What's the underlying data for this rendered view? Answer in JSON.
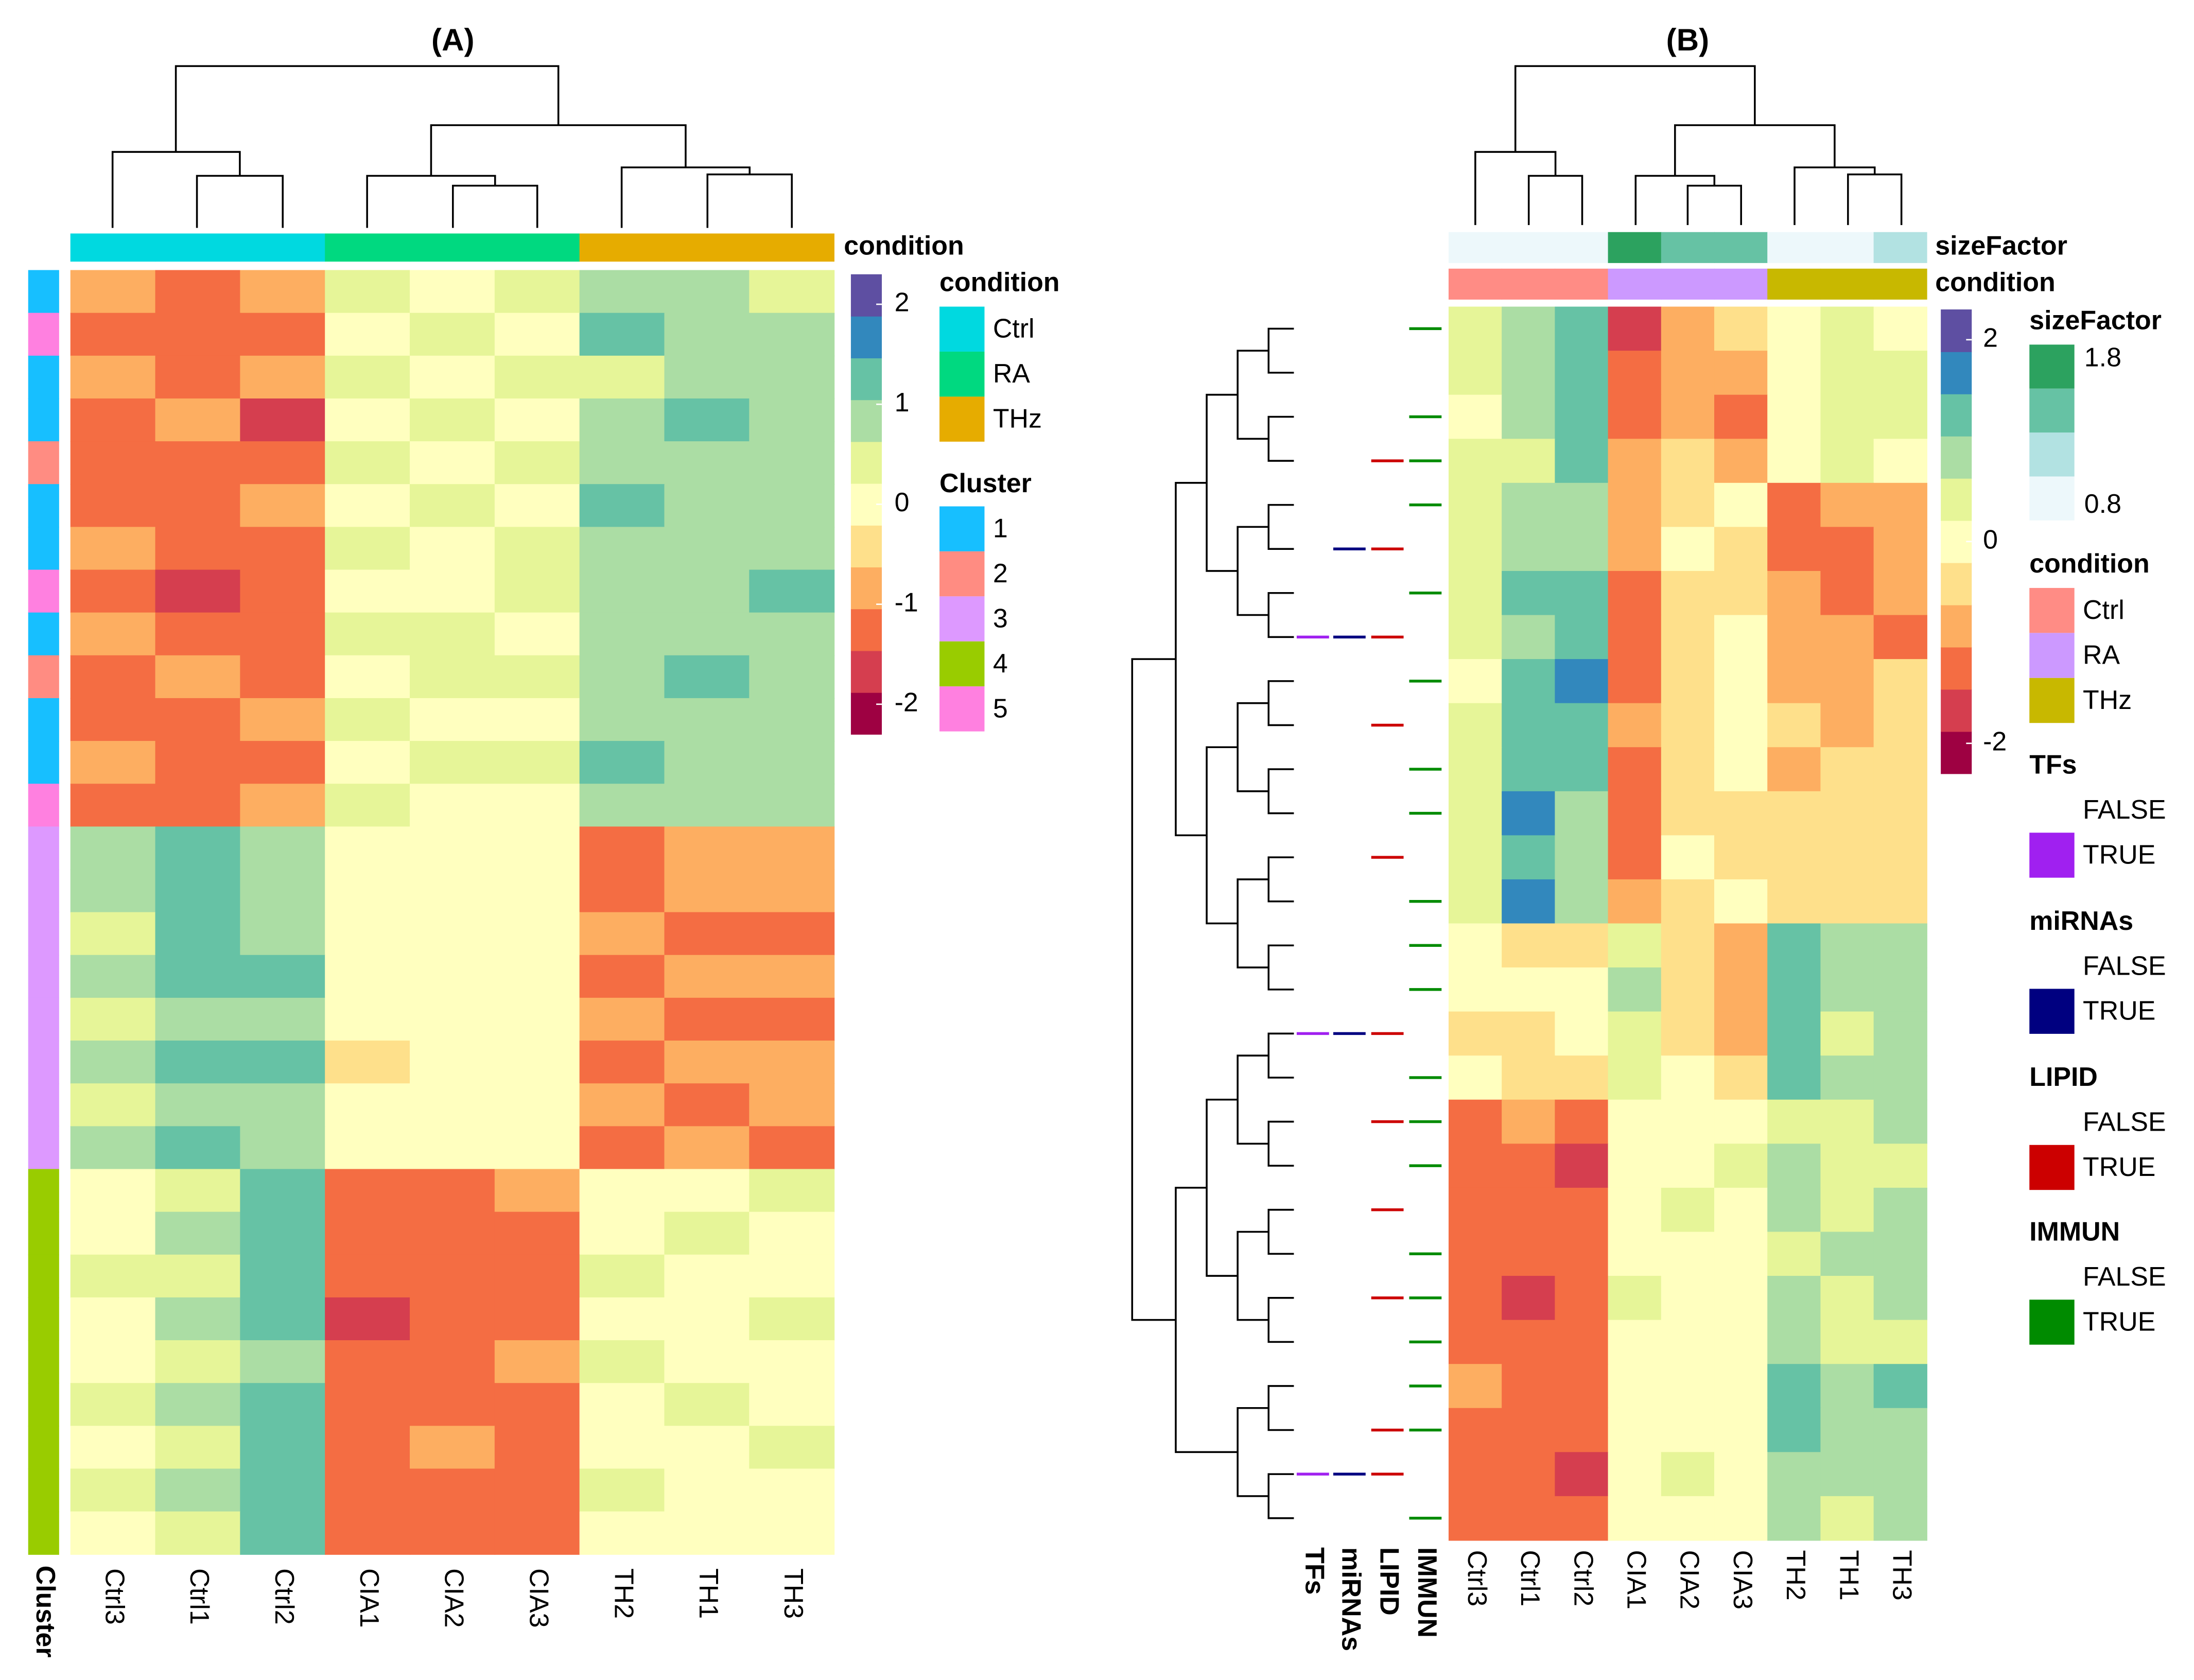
{
  "chart_data": [
    {
      "type": "heatmap",
      "title": "(A)",
      "columns": [
        "Ctrl3",
        "Ctrl1",
        "Ctrl2",
        "CIA1",
        "CIA2",
        "CIA3",
        "TH2",
        "TH1",
        "TH3"
      ],
      "zlim": [
        -2.3,
        2.3
      ],
      "zticks": [
        -2,
        -1,
        0,
        1,
        2
      ],
      "colors": [
        "#9e0142",
        "#d53e4f",
        "#f46d43",
        "#fdae61",
        "#fee08b",
        "#ffffbf",
        "#e6f598",
        "#abdda4",
        "#66c2a5",
        "#3288bd",
        "#5e4fa2"
      ],
      "column_annotations": [
        {
          "title": "condition",
          "levels": [
            "Ctrl",
            "RA",
            "THz"
          ],
          "colors": [
            "#00d9e0",
            "#00d980",
            "#e6ac00"
          ],
          "values": [
            "Ctrl",
            "Ctrl",
            "Ctrl",
            "RA",
            "RA",
            "RA",
            "THz",
            "THz",
            "THz"
          ]
        }
      ],
      "row_annotations": [
        {
          "title": "Cluster",
          "levels": [
            "1",
            "2",
            "3",
            "4",
            "5"
          ],
          "colors": [
            "#17bfff",
            "#ff8c82",
            "#dd99ff",
            "#99cc00",
            "#ff80e0"
          ],
          "values": [
            "1",
            "5",
            "1",
            "1",
            "2",
            "1",
            "1",
            "5",
            "1",
            "2",
            "1",
            "1",
            "5",
            "3",
            "3",
            "3",
            "3",
            "3",
            "3",
            "3",
            "3",
            "4",
            "4",
            "4",
            "4",
            "4",
            "4",
            "4",
            "4",
            "4"
          ]
        }
      ],
      "values": [
        [
          -1.0,
          -1.2,
          -0.9,
          0.3,
          0.2,
          0.4,
          0.9,
          0.7,
          0.6
        ],
        [
          -1.3,
          -1.1,
          -1.4,
          0.1,
          0.3,
          0.2,
          1.1,
          0.8,
          0.9
        ],
        [
          -0.9,
          -1.3,
          -1.0,
          0.4,
          0.1,
          0.3,
          0.6,
          0.9,
          0.7
        ],
        [
          -1.2,
          -1.0,
          -1.5,
          0.2,
          0.4,
          0.1,
          1.0,
          1.2,
          0.8
        ],
        [
          -1.1,
          -1.4,
          -1.2,
          0.3,
          0.2,
          0.5,
          0.7,
          0.8,
          1.0
        ],
        [
          -1.4,
          -1.2,
          -1.0,
          0.0,
          0.3,
          0.2,
          1.2,
          0.9,
          0.8
        ],
        [
          -1.0,
          -1.1,
          -1.3,
          0.4,
          0.2,
          0.3,
          0.8,
          1.0,
          0.7
        ],
        [
          -1.2,
          -1.5,
          -1.1,
          0.2,
          0.1,
          0.4,
          0.9,
          0.7,
          1.1
        ],
        [
          -0.9,
          -1.3,
          -1.4,
          0.3,
          0.5,
          0.2,
          1.0,
          0.8,
          0.9
        ],
        [
          -1.3,
          -1.0,
          -1.2,
          0.1,
          0.3,
          0.3,
          0.7,
          1.1,
          0.8
        ],
        [
          -1.1,
          -1.2,
          -0.9,
          0.4,
          0.2,
          0.1,
          0.9,
          0.9,
          1.0
        ],
        [
          -1.0,
          -1.4,
          -1.3,
          0.2,
          0.4,
          0.3,
          1.1,
          0.8,
          0.7
        ],
        [
          -1.2,
          -1.1,
          -1.0,
          0.3,
          0.1,
          0.2,
          0.8,
          1.0,
          0.9
        ],
        [
          0.7,
          1.2,
          0.9,
          -0.1,
          0.2,
          0.0,
          -1.1,
          -1.0,
          -0.9
        ],
        [
          0.8,
          1.3,
          1.0,
          0.0,
          -0.2,
          0.1,
          -1.2,
          -0.9,
          -1.0
        ],
        [
          0.6,
          1.1,
          0.8,
          0.1,
          0.0,
          -0.1,
          -1.0,
          -1.1,
          -1.2
        ],
        [
          0.9,
          1.4,
          1.1,
          -0.2,
          0.1,
          0.0,
          -1.3,
          -1.0,
          -0.8
        ],
        [
          0.5,
          1.0,
          0.7,
          0.0,
          0.1,
          0.2,
          -0.9,
          -1.2,
          -1.1
        ],
        [
          0.8,
          1.2,
          1.2,
          -0.3,
          -0.1,
          0.0,
          -1.1,
          -0.9,
          -1.0
        ],
        [
          0.6,
          0.9,
          1.0,
          -0.1,
          0.0,
          -0.2,
          -1.0,
          -1.1,
          -0.9
        ],
        [
          0.7,
          1.1,
          0.9,
          0.0,
          0.2,
          0.1,
          -1.2,
          -1.0,
          -1.1
        ],
        [
          0.2,
          0.6,
          1.1,
          -1.3,
          -1.2,
          -1.0,
          0.2,
          0.1,
          0.3
        ],
        [
          0.1,
          0.7,
          1.3,
          -1.4,
          -1.1,
          -1.2,
          0.0,
          0.3,
          0.2
        ],
        [
          0.3,
          0.5,
          1.2,
          -1.2,
          -1.3,
          -1.1,
          0.3,
          0.2,
          0.0
        ],
        [
          0.0,
          0.8,
          1.4,
          -1.5,
          -1.2,
          -1.3,
          0.1,
          0.0,
          0.4
        ],
        [
          0.2,
          0.6,
          1.0,
          -1.3,
          -1.4,
          -1.0,
          0.4,
          0.2,
          0.1
        ],
        [
          0.4,
          0.7,
          1.3,
          -1.1,
          -1.2,
          -1.2,
          0.0,
          0.3,
          0.2
        ],
        [
          0.1,
          0.5,
          1.2,
          -1.4,
          -1.0,
          -1.3,
          0.2,
          0.1,
          0.3
        ],
        [
          0.3,
          0.8,
          1.1,
          -1.2,
          -1.3,
          -1.1,
          0.3,
          0.0,
          0.1
        ],
        [
          0.2,
          0.6,
          1.4,
          -1.3,
          -1.1,
          -1.4,
          0.1,
          0.2,
          0.2
        ]
      ]
    },
    {
      "type": "heatmap",
      "title": "(B)",
      "columns": [
        "Ctrl3",
        "Ctrl1",
        "Ctrl2",
        "CIA1",
        "CIA2",
        "CIA3",
        "TH2",
        "TH1",
        "TH3"
      ],
      "zlim": [
        -2.3,
        2.3
      ],
      "zticks": [
        -2,
        0,
        2
      ],
      "colors": [
        "#9e0142",
        "#d53e4f",
        "#f46d43",
        "#fdae61",
        "#fee08b",
        "#ffffbf",
        "#e6f598",
        "#abdda4",
        "#66c2a5",
        "#3288bd",
        "#5e4fa2"
      ],
      "size_factor": {
        "title": "sizeFactor",
        "lim": [
          0.7,
          1.9
        ],
        "ticks": [
          1.8,
          0.8
        ],
        "colors": [
          "#edf8fb",
          "#b2e2e2",
          "#66c2a4",
          "#2ca25f"
        ],
        "values": [
          0.9,
          0.8,
          0.8,
          1.8,
          1.4,
          1.4,
          0.85,
          0.85,
          1.0
        ]
      },
      "column_annotations": [
        {
          "title": "condition",
          "levels": [
            "Ctrl",
            "RA",
            "THz"
          ],
          "colors": [
            "#ff8c85",
            "#cc99ff",
            "#c8b800"
          ],
          "values": [
            "Ctrl",
            "Ctrl",
            "Ctrl",
            "RA",
            "RA",
            "RA",
            "THz",
            "THz",
            "THz"
          ]
        }
      ],
      "row_annotations": [
        {
          "title": "TFs",
          "levels": [
            "FALSE",
            "TRUE"
          ],
          "colors": [
            "#ffffff",
            "#a020f0"
          ],
          "values": [
            false,
            false,
            false,
            false,
            false,
            false,
            false,
            true,
            false,
            false,
            false,
            false,
            false,
            false,
            false,
            false,
            true,
            false,
            false,
            false,
            false,
            false,
            false,
            false,
            false,
            false,
            true,
            false
          ]
        },
        {
          "title": "miRNAs",
          "levels": [
            "FALSE",
            "TRUE"
          ],
          "colors": [
            "#ffffff",
            "#000080"
          ],
          "values": [
            false,
            false,
            false,
            false,
            false,
            true,
            false,
            true,
            false,
            false,
            false,
            false,
            false,
            false,
            false,
            false,
            true,
            false,
            false,
            false,
            false,
            false,
            false,
            false,
            false,
            false,
            true,
            false
          ]
        },
        {
          "title": "LIPID",
          "levels": [
            "FALSE",
            "TRUE"
          ],
          "colors": [
            "#ffffff",
            "#cc0000"
          ],
          "values": [
            false,
            false,
            false,
            true,
            false,
            true,
            false,
            true,
            false,
            true,
            false,
            false,
            true,
            false,
            false,
            false,
            true,
            false,
            true,
            false,
            true,
            false,
            true,
            false,
            false,
            true,
            true,
            false
          ]
        },
        {
          "title": "IMMUN",
          "levels": [
            "FALSE",
            "TRUE"
          ],
          "colors": [
            "#ffffff",
            "#008b00"
          ],
          "values": [
            true,
            false,
            true,
            true,
            true,
            false,
            true,
            false,
            true,
            false,
            true,
            true,
            false,
            true,
            true,
            true,
            false,
            true,
            true,
            true,
            false,
            true,
            true,
            true,
            true,
            true,
            false,
            true
          ]
        }
      ],
      "values": [
        [
          0.3,
          0.7,
          1.2,
          -1.6,
          -0.8,
          -0.6,
          0.1,
          0.5,
          0.2
        ],
        [
          0.4,
          0.9,
          1.4,
          -1.4,
          -0.9,
          -0.7,
          0.0,
          0.6,
          0.3
        ],
        [
          0.2,
          0.8,
          1.3,
          -1.2,
          -1.0,
          -1.1,
          0.2,
          0.4,
          0.5
        ],
        [
          0.5,
          0.6,
          1.1,
          -1.0,
          -0.6,
          -0.8,
          -0.2,
          0.3,
          0.1
        ],
        [
          0.3,
          1.0,
          0.9,
          -0.8,
          -0.3,
          -0.2,
          -1.2,
          -1.0,
          -0.9
        ],
        [
          0.6,
          0.8,
          1.0,
          -0.9,
          -0.2,
          -0.4,
          -1.3,
          -1.1,
          -1.0
        ],
        [
          0.4,
          1.1,
          1.2,
          -1.1,
          -0.4,
          -0.3,
          -1.0,
          -1.2,
          -0.8
        ],
        [
          0.5,
          0.9,
          1.3,
          -1.3,
          -0.5,
          -0.2,
          -0.9,
          -0.8,
          -1.1
        ],
        [
          0.2,
          1.2,
          1.5,
          -1.2,
          -0.6,
          0.0,
          -0.8,
          -0.7,
          -0.6
        ],
        [
          0.4,
          1.3,
          1.1,
          -1.0,
          -0.3,
          -0.1,
          -0.6,
          -0.9,
          -0.5
        ],
        [
          0.3,
          1.4,
          1.2,
          -1.4,
          -0.4,
          -0.2,
          -0.7,
          -0.5,
          -0.6
        ],
        [
          0.6,
          1.6,
          1.0,
          -1.1,
          -0.5,
          -0.3,
          -0.5,
          -0.6,
          -0.4
        ],
        [
          0.3,
          1.2,
          0.9,
          -1.2,
          -0.2,
          -0.3,
          -0.4,
          -0.5,
          -0.3
        ],
        [
          0.5,
          1.7,
          0.8,
          -0.9,
          -0.4,
          -0.1,
          -0.6,
          -0.3,
          -0.5
        ],
        [
          -0.2,
          -0.4,
          -0.3,
          0.6,
          -0.5,
          -0.8,
          1.3,
          0.7,
          0.9
        ],
        [
          0.1,
          -0.2,
          -0.1,
          0.8,
          -0.6,
          -0.9,
          1.4,
          0.9,
          0.8
        ],
        [
          -0.3,
          -0.5,
          -0.2,
          0.5,
          -0.3,
          -0.7,
          1.2,
          0.6,
          1.0
        ],
        [
          0.0,
          -0.3,
          -0.4,
          0.4,
          -0.2,
          -0.5,
          1.1,
          0.8,
          0.7
        ],
        [
          -1.1,
          -1.0,
          -1.3,
          0.1,
          0.2,
          0.0,
          0.6,
          0.4,
          0.8
        ],
        [
          -1.3,
          -1.2,
          -1.5,
          0.2,
          0.1,
          0.3,
          0.7,
          0.5,
          0.6
        ],
        [
          -1.2,
          -1.4,
          -1.4,
          0.0,
          0.3,
          0.2,
          0.8,
          0.6,
          0.9
        ],
        [
          -1.4,
          -1.3,
          -1.2,
          0.1,
          0.0,
          0.1,
          0.5,
          0.7,
          0.7
        ],
        [
          -1.1,
          -1.5,
          -1.3,
          0.3,
          0.2,
          0.0,
          0.9,
          0.5,
          0.8
        ],
        [
          -1.3,
          -1.2,
          -1.4,
          0.0,
          0.1,
          0.2,
          1.0,
          0.6,
          0.6
        ],
        [
          -1.0,
          -1.3,
          -1.1,
          0.2,
          0.0,
          0.1,
          1.3,
          0.8,
          1.1
        ],
        [
          -1.2,
          -1.4,
          -1.3,
          0.1,
          0.2,
          0.0,
          1.1,
          0.7,
          0.9
        ],
        [
          -1.1,
          -1.2,
          -1.5,
          0.0,
          0.3,
          0.1,
          0.8,
          0.9,
          1.0
        ],
        [
          -1.3,
          -1.1,
          -1.2,
          0.2,
          0.1,
          0.2,
          0.7,
          0.6,
          0.8
        ]
      ]
    }
  ]
}
